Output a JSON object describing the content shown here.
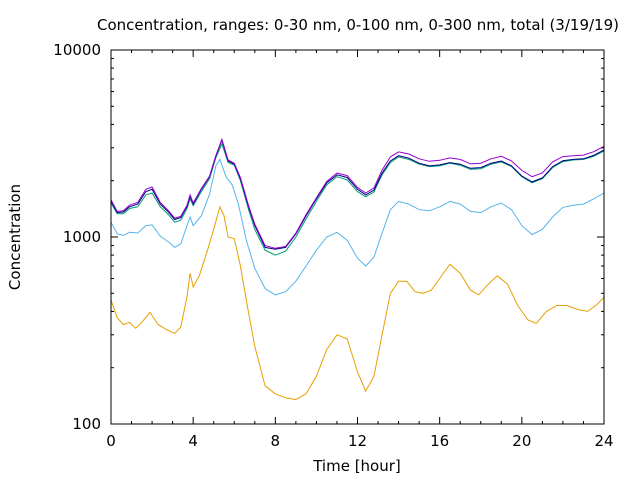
{
  "chart_data": {
    "type": "line",
    "title": "Concentration, ranges: 0-30 nm, 0-100 nm, 0-300 nm, total (3/19/19)",
    "xlabel": "Time [hour]",
    "ylabel": "Concentration",
    "xlim": [
      0,
      24
    ],
    "ylim": [
      100,
      10000
    ],
    "yscale": "log",
    "xticks": [
      "0",
      "4",
      "8",
      "12",
      "16",
      "20",
      "24"
    ],
    "yticks": [
      "100",
      "1000",
      "10000"
    ],
    "legend": "none",
    "grid": false,
    "series": [
      {
        "color": "#e69f00",
        "points": [
          [
            0,
            460
          ],
          [
            0.3,
            370
          ],
          [
            0.6,
            340
          ],
          [
            0.9,
            350
          ],
          [
            1.2,
            325
          ],
          [
            1.5,
            350
          ],
          [
            1.9,
            395
          ],
          [
            2.3,
            340
          ],
          [
            2.7,
            320
          ],
          [
            3.1,
            305
          ],
          [
            3.4,
            330
          ],
          [
            3.7,
            480
          ],
          [
            3.85,
            640
          ],
          [
            4.0,
            540
          ],
          [
            4.3,
            620
          ],
          [
            4.7,
            850
          ],
          [
            5.0,
            1100
          ],
          [
            5.3,
            1450
          ],
          [
            5.5,
            1300
          ],
          [
            5.7,
            1000
          ],
          [
            6.0,
            980
          ],
          [
            6.3,
            700
          ],
          [
            6.6,
            450
          ],
          [
            7.0,
            260
          ],
          [
            7.5,
            160
          ],
          [
            8.0,
            145
          ],
          [
            8.5,
            138
          ],
          [
            9.0,
            135
          ],
          [
            9.5,
            145
          ],
          [
            10.0,
            180
          ],
          [
            10.5,
            250
          ],
          [
            11.0,
            300
          ],
          [
            11.5,
            285
          ],
          [
            12.0,
            190
          ],
          [
            12.4,
            150
          ],
          [
            12.8,
            180
          ],
          [
            13.2,
            300
          ],
          [
            13.6,
            500
          ],
          [
            14.0,
            580
          ],
          [
            14.4,
            580
          ],
          [
            14.8,
            510
          ],
          [
            15.2,
            500
          ],
          [
            15.6,
            520
          ],
          [
            16.0,
            600
          ],
          [
            16.5,
            715
          ],
          [
            17.0,
            640
          ],
          [
            17.5,
            520
          ],
          [
            17.9,
            490
          ],
          [
            18.3,
            550
          ],
          [
            18.8,
            620
          ],
          [
            19.3,
            560
          ],
          [
            19.8,
            430
          ],
          [
            20.3,
            360
          ],
          [
            20.7,
            345
          ],
          [
            21.2,
            400
          ],
          [
            21.7,
            430
          ],
          [
            22.2,
            430
          ],
          [
            22.7,
            410
          ],
          [
            23.2,
            400
          ],
          [
            23.6,
            430
          ],
          [
            24,
            475
          ]
        ]
      },
      {
        "color": "#56b4e9",
        "points": [
          [
            0,
            1200
          ],
          [
            0.3,
            1040
          ],
          [
            0.6,
            1020
          ],
          [
            0.9,
            1060
          ],
          [
            1.3,
            1050
          ],
          [
            1.7,
            1150
          ],
          [
            2.0,
            1160
          ],
          [
            2.4,
            1010
          ],
          [
            2.8,
            940
          ],
          [
            3.1,
            880
          ],
          [
            3.4,
            920
          ],
          [
            3.7,
            1150
          ],
          [
            3.85,
            1280
          ],
          [
            4.0,
            1150
          ],
          [
            4.4,
            1300
          ],
          [
            4.8,
            1700
          ],
          [
            5.1,
            2400
          ],
          [
            5.3,
            2600
          ],
          [
            5.6,
            2100
          ],
          [
            5.9,
            1900
          ],
          [
            6.2,
            1500
          ],
          [
            6.6,
            950
          ],
          [
            7.0,
            680
          ],
          [
            7.5,
            530
          ],
          [
            8.0,
            490
          ],
          [
            8.5,
            510
          ],
          [
            9.0,
            580
          ],
          [
            9.5,
            700
          ],
          [
            10.0,
            850
          ],
          [
            10.5,
            1000
          ],
          [
            11.0,
            1060
          ],
          [
            11.5,
            960
          ],
          [
            12.0,
            770
          ],
          [
            12.4,
            700
          ],
          [
            12.8,
            780
          ],
          [
            13.2,
            1050
          ],
          [
            13.6,
            1400
          ],
          [
            14.0,
            1550
          ],
          [
            14.5,
            1500
          ],
          [
            15.0,
            1400
          ],
          [
            15.5,
            1380
          ],
          [
            16.0,
            1450
          ],
          [
            16.5,
            1550
          ],
          [
            17.0,
            1500
          ],
          [
            17.5,
            1370
          ],
          [
            18.0,
            1350
          ],
          [
            18.5,
            1450
          ],
          [
            19.0,
            1520
          ],
          [
            19.5,
            1400
          ],
          [
            20.0,
            1150
          ],
          [
            20.5,
            1030
          ],
          [
            21.0,
            1100
          ],
          [
            21.5,
            1280
          ],
          [
            22.0,
            1440
          ],
          [
            22.5,
            1480
          ],
          [
            23.0,
            1500
          ],
          [
            23.5,
            1600
          ],
          [
            24,
            1720
          ]
        ]
      },
      {
        "color": "#009e73",
        "points": [
          [
            0,
            1520
          ],
          [
            0.3,
            1330
          ],
          [
            0.6,
            1330
          ],
          [
            0.9,
            1420
          ],
          [
            1.3,
            1450
          ],
          [
            1.7,
            1680
          ],
          [
            2.0,
            1720
          ],
          [
            2.4,
            1450
          ],
          [
            2.8,
            1320
          ],
          [
            3.1,
            1200
          ],
          [
            3.4,
            1230
          ],
          [
            3.7,
            1420
          ],
          [
            3.85,
            1600
          ],
          [
            4.0,
            1470
          ],
          [
            4.4,
            1750
          ],
          [
            4.8,
            2050
          ],
          [
            5.1,
            2650
          ],
          [
            5.4,
            3150
          ],
          [
            5.7,
            2500
          ],
          [
            6.0,
            2420
          ],
          [
            6.3,
            2000
          ],
          [
            6.7,
            1400
          ],
          [
            7.0,
            1100
          ],
          [
            7.5,
            850
          ],
          [
            8.0,
            800
          ],
          [
            8.5,
            840
          ],
          [
            9.0,
            1000
          ],
          [
            9.5,
            1250
          ],
          [
            10.0,
            1550
          ],
          [
            10.5,
            1900
          ],
          [
            11.0,
            2100
          ],
          [
            11.5,
            2020
          ],
          [
            12.0,
            1750
          ],
          [
            12.4,
            1640
          ],
          [
            12.8,
            1740
          ],
          [
            13.2,
            2150
          ],
          [
            13.6,
            2500
          ],
          [
            14.0,
            2680
          ],
          [
            14.5,
            2600
          ],
          [
            15.0,
            2450
          ],
          [
            15.5,
            2380
          ],
          [
            16.0,
            2400
          ],
          [
            16.5,
            2480
          ],
          [
            17.0,
            2420
          ],
          [
            17.5,
            2300
          ],
          [
            18.0,
            2320
          ],
          [
            18.5,
            2450
          ],
          [
            19.0,
            2520
          ],
          [
            19.5,
            2380
          ],
          [
            20.0,
            2100
          ],
          [
            20.5,
            1950
          ],
          [
            21.0,
            2050
          ],
          [
            21.5,
            2350
          ],
          [
            22.0,
            2530
          ],
          [
            22.5,
            2580
          ],
          [
            23.0,
            2600
          ],
          [
            23.5,
            2700
          ],
          [
            24,
            2880
          ]
        ]
      },
      {
        "color": "#000080",
        "points": [
          [
            0,
            1560
          ],
          [
            0.3,
            1350
          ],
          [
            0.6,
            1360
          ],
          [
            0.9,
            1450
          ],
          [
            1.3,
            1500
          ],
          [
            1.7,
            1750
          ],
          [
            2.0,
            1800
          ],
          [
            2.4,
            1500
          ],
          [
            2.8,
            1360
          ],
          [
            3.1,
            1240
          ],
          [
            3.4,
            1270
          ],
          [
            3.7,
            1460
          ],
          [
            3.85,
            1650
          ],
          [
            4.0,
            1500
          ],
          [
            4.4,
            1800
          ],
          [
            4.8,
            2100
          ],
          [
            5.1,
            2700
          ],
          [
            5.4,
            3300
          ],
          [
            5.7,
            2550
          ],
          [
            6.0,
            2450
          ],
          [
            6.3,
            2050
          ],
          [
            6.7,
            1450
          ],
          [
            7.0,
            1150
          ],
          [
            7.5,
            880
          ],
          [
            8.0,
            860
          ],
          [
            8.5,
            880
          ],
          [
            9.0,
            1040
          ],
          [
            9.5,
            1300
          ],
          [
            10.0,
            1600
          ],
          [
            10.5,
            1950
          ],
          [
            11.0,
            2150
          ],
          [
            11.5,
            2080
          ],
          [
            12.0,
            1800
          ],
          [
            12.4,
            1680
          ],
          [
            12.8,
            1780
          ],
          [
            13.2,
            2200
          ],
          [
            13.6,
            2550
          ],
          [
            14.0,
            2720
          ],
          [
            14.5,
            2640
          ],
          [
            15.0,
            2480
          ],
          [
            15.5,
            2400
          ],
          [
            16.0,
            2430
          ],
          [
            16.5,
            2500
          ],
          [
            17.0,
            2450
          ],
          [
            17.5,
            2330
          ],
          [
            18.0,
            2350
          ],
          [
            18.5,
            2480
          ],
          [
            19.0,
            2550
          ],
          [
            19.5,
            2400
          ],
          [
            20.0,
            2120
          ],
          [
            20.5,
            1970
          ],
          [
            21.0,
            2070
          ],
          [
            21.5,
            2380
          ],
          [
            22.0,
            2560
          ],
          [
            22.5,
            2600
          ],
          [
            23.0,
            2620
          ],
          [
            23.5,
            2730
          ],
          [
            24,
            2920
          ]
        ]
      },
      {
        "color": "#9400d3",
        "points": [
          [
            0,
            1580
          ],
          [
            0.3,
            1370
          ],
          [
            0.6,
            1380
          ],
          [
            0.9,
            1480
          ],
          [
            1.3,
            1530
          ],
          [
            1.7,
            1800
          ],
          [
            2.0,
            1850
          ],
          [
            2.4,
            1530
          ],
          [
            2.8,
            1380
          ],
          [
            3.1,
            1260
          ],
          [
            3.4,
            1290
          ],
          [
            3.7,
            1480
          ],
          [
            3.85,
            1680
          ],
          [
            4.0,
            1520
          ],
          [
            4.4,
            1820
          ],
          [
            4.8,
            2120
          ],
          [
            5.1,
            2720
          ],
          [
            5.4,
            3330
          ],
          [
            5.7,
            2580
          ],
          [
            6.0,
            2480
          ],
          [
            6.3,
            2080
          ],
          [
            6.7,
            1470
          ],
          [
            7.0,
            1170
          ],
          [
            7.5,
            900
          ],
          [
            8.0,
            870
          ],
          [
            8.5,
            890
          ],
          [
            9.0,
            1050
          ],
          [
            9.5,
            1320
          ],
          [
            10.0,
            1620
          ],
          [
            10.5,
            1980
          ],
          [
            11.0,
            2200
          ],
          [
            11.5,
            2130
          ],
          [
            12.0,
            1840
          ],
          [
            12.4,
            1720
          ],
          [
            12.8,
            1830
          ],
          [
            13.2,
            2280
          ],
          [
            13.6,
            2680
          ],
          [
            14.0,
            2850
          ],
          [
            14.5,
            2780
          ],
          [
            15.0,
            2620
          ],
          [
            15.5,
            2540
          ],
          [
            16.0,
            2570
          ],
          [
            16.5,
            2650
          ],
          [
            17.0,
            2600
          ],
          [
            17.5,
            2460
          ],
          [
            18.0,
            2480
          ],
          [
            18.5,
            2620
          ],
          [
            19.0,
            2700
          ],
          [
            19.5,
            2550
          ],
          [
            20.0,
            2270
          ],
          [
            20.5,
            2100
          ],
          [
            21.0,
            2200
          ],
          [
            21.5,
            2520
          ],
          [
            22.0,
            2690
          ],
          [
            22.5,
            2720
          ],
          [
            23.0,
            2740
          ],
          [
            23.5,
            2860
          ],
          [
            24,
            3050
          ]
        ]
      }
    ]
  }
}
